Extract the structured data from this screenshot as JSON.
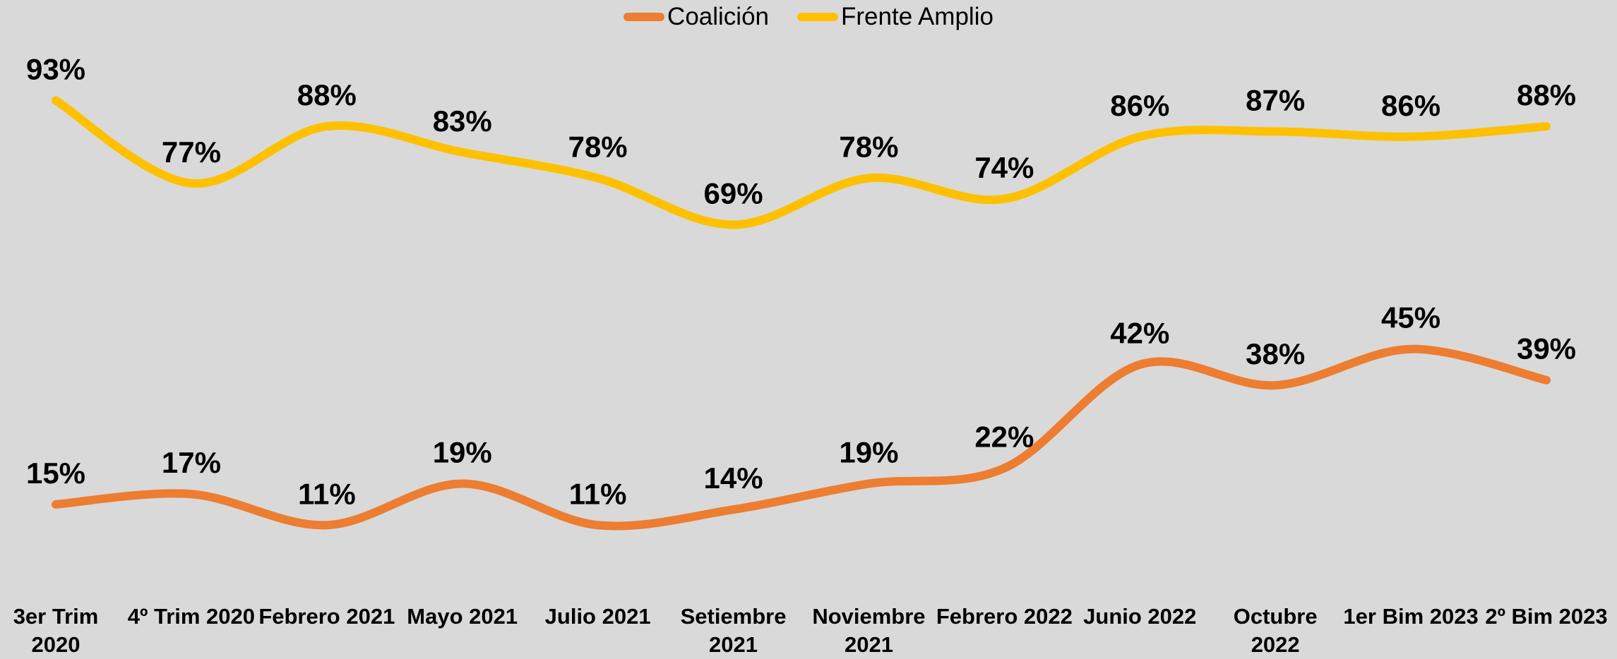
{
  "chart_data": {
    "type": "line",
    "categories": [
      "3er Trim 2020",
      "4º Trim 2020",
      "Febrero 2021",
      "Mayo 2021",
      "Julio 2021",
      "Setiembre 2021",
      "Noviembre 2021",
      "Febrero 2022",
      "Junio 2022",
      "Octubre 2022",
      "1er Bim 2023",
      "2º Bim 2023"
    ],
    "series": [
      {
        "name": "Coalición",
        "color": "#ED7D31",
        "values": [
          15,
          17,
          11,
          19,
          11,
          14,
          19,
          22,
          42,
          38,
          45,
          39
        ],
        "value_labels": [
          "15%",
          "17%",
          "11%",
          "19%",
          "11%",
          "14%",
          "19%",
          "22%",
          "42%",
          "38%",
          "45%",
          "39%"
        ]
      },
      {
        "name": "Frente Amplio",
        "color": "#FFC000",
        "values": [
          93,
          77,
          88,
          83,
          78,
          69,
          78,
          74,
          86,
          87,
          86,
          88
        ],
        "value_labels": [
          "93%",
          "77%",
          "88%",
          "83%",
          "78%",
          "69%",
          "78%",
          "74%",
          "86%",
          "87%",
          "86%",
          "88%"
        ]
      }
    ],
    "legend": "top"
  }
}
